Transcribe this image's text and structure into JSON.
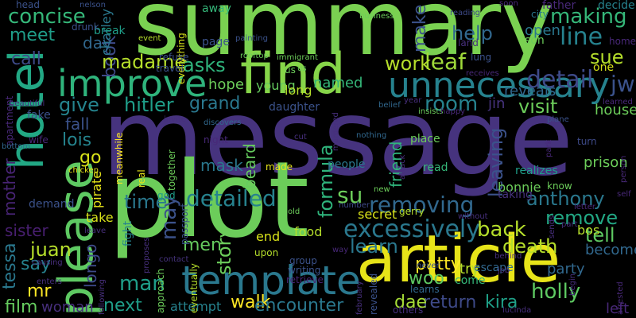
{
  "words": [
    {
      "text": "message",
      "color": "#46337e"
    },
    {
      "text": "summary",
      "color": "#7ad151"
    },
    {
      "text": "plot",
      "color": "#6ccd5a"
    },
    {
      "text": "article",
      "color": "#e7e419"
    },
    {
      "text": "find",
      "color": "#86d549"
    },
    {
      "text": "hotel",
      "color": "#22a884"
    },
    {
      "text": "please",
      "color": "#5ec962"
    },
    {
      "text": "template",
      "color": "#2a788e"
    },
    {
      "text": "improve",
      "color": "#2fb47c"
    },
    {
      "text": "unnecessary",
      "color": "#26828e"
    },
    {
      "text": "detail",
      "color": "#3e4a89"
    },
    {
      "text": "excessively",
      "color": "#2a788e"
    },
    {
      "text": "removing",
      "color": "#31688e"
    },
    {
      "text": "detailed",
      "color": "#26828e"
    },
    {
      "text": "making",
      "color": "#35b779"
    },
    {
      "text": "concise",
      "color": "#35b779"
    },
    {
      "text": "line",
      "color": "#26828e"
    },
    {
      "text": "leaf",
      "color": "#9fda3a"
    },
    {
      "text": "work",
      "color": "#b5de2b"
    },
    {
      "text": "room",
      "color": "#26828e"
    },
    {
      "text": "help",
      "color": "#31688e"
    },
    {
      "text": "make",
      "color": "#3b528b"
    },
    {
      "text": "book",
      "color": "#3e4a89"
    },
    {
      "text": "madame",
      "color": "#b5de2b"
    },
    {
      "text": "asks",
      "color": "#2fb47c"
    },
    {
      "text": "hitler",
      "color": "#1f9e89"
    },
    {
      "text": "grand",
      "color": "#2a788e"
    },
    {
      "text": "visit",
      "color": "#6ccd5a"
    },
    {
      "text": "give",
      "color": "#25848e"
    },
    {
      "text": "call",
      "color": "#3e4a89"
    },
    {
      "text": "meet",
      "color": "#1f9e89"
    },
    {
      "text": "day",
      "color": "#31688e"
    },
    {
      "text": "time",
      "color": "#2a788e"
    },
    {
      "text": "may",
      "color": "#3b528b"
    },
    {
      "text": "men",
      "color": "#65cb5e"
    },
    {
      "text": "man",
      "color": "#1f9e89"
    },
    {
      "text": "next",
      "color": "#1f9e89"
    },
    {
      "text": "story",
      "color": "#6ccd5a"
    },
    {
      "text": "walk",
      "color": "#fde725"
    },
    {
      "text": "attempt",
      "color": "#26828e"
    },
    {
      "text": "encounter",
      "color": "#2a788e"
    },
    {
      "text": "return",
      "color": "#3e4a89"
    },
    {
      "text": "kira",
      "color": "#1fa188"
    },
    {
      "text": "holly",
      "color": "#5ec962"
    },
    {
      "text": "tell",
      "color": "#5ec962"
    },
    {
      "text": "remove",
      "color": "#22a884"
    },
    {
      "text": "anthony",
      "color": "#2a788e"
    },
    {
      "text": "back",
      "color": "#b5de2b"
    },
    {
      "text": "death",
      "color": "#b5de2b"
    },
    {
      "text": "learn",
      "color": "#2a788e"
    },
    {
      "text": "patty",
      "color": "#fde725"
    },
    {
      "text": "woo",
      "color": "#5ec962"
    },
    {
      "text": "dae",
      "color": "#a5db36"
    },
    {
      "text": "mr",
      "color": "#fde725"
    },
    {
      "text": "film",
      "color": "#65cb5e"
    },
    {
      "text": "woman",
      "color": "#472f7d"
    },
    {
      "text": "juan",
      "color": "#b5de2b"
    },
    {
      "text": "say",
      "color": "#26828e"
    },
    {
      "text": "tessa",
      "color": "#2a788e"
    },
    {
      "text": "sister",
      "color": "#481f70"
    },
    {
      "text": "mother",
      "color": "#482475"
    },
    {
      "text": "fall",
      "color": "#3b528b"
    },
    {
      "text": "lois",
      "color": "#25848e"
    },
    {
      "text": "go",
      "color": "#d8e219"
    },
    {
      "text": "longo",
      "color": "#3e4a89"
    },
    {
      "text": "sue",
      "color": "#b5de2b"
    },
    {
      "text": "jw",
      "color": "#3b528b"
    },
    {
      "text": "su",
      "color": "#6ccd5a"
    },
    {
      "text": "formula",
      "color": "#2fb47c"
    },
    {
      "text": "friend",
      "color": "#2fb47c"
    },
    {
      "text": "leaving",
      "color": "#3b528b"
    },
    {
      "text": "beard",
      "color": "#65cb5e"
    },
    {
      "text": "mask",
      "color": "#2a788e"
    },
    {
      "text": "secret",
      "color": "#d8e219"
    },
    {
      "text": "named",
      "color": "#35b779"
    },
    {
      "text": "hope",
      "color": "#6ccd5a"
    },
    {
      "text": "young",
      "color": "#65cb5e"
    },
    {
      "text": "reveals",
      "color": "#31688e"
    },
    {
      "text": "jin",
      "color": "#46337e"
    },
    {
      "text": "house",
      "color": "#6ccd5a"
    },
    {
      "text": "prison",
      "color": "#6ccd5a"
    },
    {
      "text": "party",
      "color": "#31688e"
    },
    {
      "text": "become",
      "color": "#31688e"
    },
    {
      "text": "left",
      "color": "#482878"
    },
    {
      "text": "try",
      "color": "#b5de2b"
    },
    {
      "text": "bos",
      "color": "#b5de2b"
    },
    {
      "text": "end",
      "color": "#d8e219"
    },
    {
      "text": "food",
      "color": "#b5de2b"
    },
    {
      "text": "take",
      "color": "#d8e219"
    },
    {
      "text": "bonnie",
      "color": "#6ccd5a"
    },
    {
      "text": "taking",
      "color": "#46337e"
    },
    {
      "text": "pirate",
      "color": "#e7e419"
    },
    {
      "text": "charley",
      "color": "#2a788e"
    },
    {
      "text": "break",
      "color": "#1f9e89"
    },
    {
      "text": "drunk",
      "color": "#3b528b"
    },
    {
      "text": "everything",
      "color": "#d8e219"
    },
    {
      "text": "away",
      "color": "#35b779"
    },
    {
      "text": "page",
      "color": "#3b528b"
    },
    {
      "text": "refuse",
      "color": "#3b528b"
    },
    {
      "text": "travel",
      "color": "#3b528b"
    },
    {
      "text": "us",
      "color": "#6ccd5a"
    },
    {
      "text": "long",
      "color": "#b5de2b"
    },
    {
      "text": "daughter",
      "color": "#3b528b"
    },
    {
      "text": "open",
      "color": "#2a788e"
    },
    {
      "text": "son",
      "color": "#6ccd5a"
    },
    {
      "text": "father",
      "color": "#482878"
    },
    {
      "text": "city",
      "color": "#2a788e"
    },
    {
      "text": "decide",
      "color": "#26828e"
    },
    {
      "text": "home",
      "color": "#482878"
    },
    {
      "text": "one",
      "color": "#d8e219"
    },
    {
      "text": "demand",
      "color": "#3b528b"
    },
    {
      "text": "fight",
      "color": "#26828e"
    },
    {
      "text": "people",
      "color": "#2a788e"
    },
    {
      "text": "place",
      "color": "#6ccd5a"
    },
    {
      "text": "read",
      "color": "#35b779"
    },
    {
      "text": "escape",
      "color": "#31688e"
    },
    {
      "text": "come",
      "color": "#35b779"
    },
    {
      "text": "learns",
      "color": "#31688e"
    },
    {
      "text": "others",
      "color": "#472f7d"
    },
    {
      "text": "upon",
      "color": "#b5de2b"
    },
    {
      "text": "group",
      "color": "#3b528b"
    },
    {
      "text": "writing",
      "color": "#3b528b"
    },
    {
      "text": "retrieve",
      "color": "#482475"
    },
    {
      "text": "realizes",
      "color": "#1f9e89"
    },
    {
      "text": "know",
      "color": "#6ccd5a"
    },
    {
      "text": "made",
      "color": "#e7e419"
    },
    {
      "text": "night",
      "color": "#482878"
    },
    {
      "text": "god",
      "color": "#1f9e89"
    },
    {
      "text": "real",
      "color": "#e7e419"
    },
    {
      "text": "gerry",
      "color": "#b5de2b"
    },
    {
      "text": "contact",
      "color": "#46337e"
    },
    {
      "text": "approach",
      "color": "#6ccd5a"
    },
    {
      "text": "eventually",
      "color": "#b5de2b"
    },
    {
      "text": "passport",
      "color": "#3b528b"
    },
    {
      "text": "turn",
      "color": "#3e4a89"
    },
    {
      "text": "plane",
      "color": "#3b528b"
    },
    {
      "text": "nothing",
      "color": "#31688e"
    },
    {
      "text": "business",
      "color": "#6ccd5a"
    },
    {
      "text": "reading",
      "color": "#3e4a89"
    },
    {
      "text": "soon",
      "color": "#482878"
    },
    {
      "text": "head",
      "color": "#3b528b"
    },
    {
      "text": "nelson",
      "color": "#3b528b"
    },
    {
      "text": "rooftop",
      "color": "#6ccd5a"
    },
    {
      "text": "immigrant",
      "color": "#6ccd5a"
    },
    {
      "text": "event",
      "color": "#b5de2b"
    },
    {
      "text": "painting",
      "color": "#3b528b"
    },
    {
      "text": "land",
      "color": "#472f7d"
    },
    {
      "text": "lung",
      "color": "#3b528b"
    },
    {
      "text": "receives",
      "color": "#482878"
    },
    {
      "text": "year",
      "color": "#472f7d"
    },
    {
      "text": "insists",
      "color": "#6ccd5a"
    },
    {
      "text": "happy",
      "color": "#482878"
    },
    {
      "text": "learned",
      "color": "#482878"
    },
    {
      "text": "belief",
      "color": "#31688e"
    },
    {
      "text": "us",
      "color": "#6ccd5a"
    },
    {
      "text": "fake",
      "color": "#3b528b"
    },
    {
      "text": "wife",
      "color": "#482878"
    },
    {
      "text": "apartment",
      "color": "#482878"
    },
    {
      "text": "bottom",
      "color": "#31688e"
    },
    {
      "text": "beautiful",
      "color": "#472f7d"
    },
    {
      "text": "chicken",
      "color": "#e7e419"
    },
    {
      "text": "meanwhile",
      "color": "#fde725"
    },
    {
      "text": "together",
      "color": "#6ccd5a"
    },
    {
      "text": "invite",
      "color": "#472f7d"
    },
    {
      "text": "discovers",
      "color": "#31688e"
    },
    {
      "text": "murdered",
      "color": "#472f7d"
    },
    {
      "text": "attack",
      "color": "#472f7d"
    },
    {
      "text": "cut",
      "color": "#472f7d"
    },
    {
      "text": "new",
      "color": "#6ccd5a"
    },
    {
      "text": "old",
      "color": "#6ccd5a"
    },
    {
      "text": "sends",
      "color": "#472f7d"
    },
    {
      "text": "behind",
      "color": "#472f7d"
    },
    {
      "text": "part",
      "color": "#472f7d"
    },
    {
      "text": "letter",
      "color": "#482878"
    },
    {
      "text": "park",
      "color": "#482878"
    },
    {
      "text": "person",
      "color": "#482878"
    },
    {
      "text": "self",
      "color": "#482878"
    },
    {
      "text": "arrested",
      "color": "#482878"
    },
    {
      "text": "begin",
      "color": "#472f7d"
    },
    {
      "text": "job",
      "color": "#472f7d"
    },
    {
      "text": "never",
      "color": "#3b528b"
    },
    {
      "text": "revealed",
      "color": "#3b528b"
    },
    {
      "text": "february",
      "color": "#472f7d"
    },
    {
      "text": "way",
      "color": "#482878"
    },
    {
      "text": "lucinda",
      "color": "#472f7d"
    },
    {
      "text": "causing",
      "color": "#472f7d"
    },
    {
      "text": "enters",
      "color": "#472f7d"
    },
    {
      "text": "leave",
      "color": "#472f7d"
    },
    {
      "text": "proposes",
      "color": "#472f7d"
    },
    {
      "text": "following",
      "color": "#472f7d"
    },
    {
      "text": "without",
      "color": "#472f7d"
    },
    {
      "text": "number",
      "color": "#3e4a89"
    }
  ]
}
